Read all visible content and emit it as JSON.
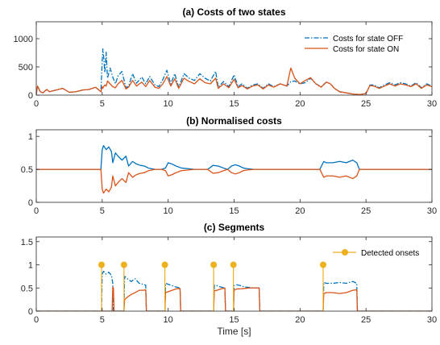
{
  "chart_data": [
    {
      "type": "line",
      "title": "(a) Costs of two states",
      "xlabel": "",
      "ylabel": "",
      "xlim": [
        0,
        30
      ],
      "ylim": [
        0,
        1300
      ],
      "xticks": [
        0,
        5,
        10,
        15,
        20,
        25,
        30
      ],
      "yticks": [
        0,
        500,
        1000
      ],
      "grid": false,
      "legend_position": "top-right",
      "series": [
        {
          "name": "Costs for state OFF",
          "color": "#0072BD",
          "style": "dash-dot",
          "x": [
            0,
            0.1,
            0.3,
            0.5,
            0.8,
            1.0,
            1.5,
            2.0,
            2.5,
            3.0,
            3.5,
            4.0,
            4.5,
            4.9,
            5.0,
            5.05,
            5.1,
            5.2,
            5.3,
            5.4,
            5.6,
            5.8,
            6.0,
            6.2,
            6.5,
            6.8,
            7.0,
            7.3,
            7.6,
            8.0,
            8.3,
            8.6,
            9.0,
            9.3,
            9.6,
            9.9,
            10.2,
            10.5,
            10.8,
            11.2,
            11.6,
            12.0,
            12.4,
            12.8,
            13.2,
            13.6,
            13.8,
            14.2,
            14.6,
            15.0,
            15.3,
            15.6,
            16.0,
            16.4,
            16.8,
            17.2,
            17.6,
            18.0,
            18.5,
            19.0,
            19.3,
            19.6,
            20.0,
            20.4,
            20.8,
            21.2,
            21.6,
            22.0,
            22.3,
            22.6,
            23.0,
            23.5,
            24.0,
            24.5,
            24.8,
            25.0,
            25.3,
            25.6,
            26.0,
            26.4,
            26.8,
            27.2,
            27.6,
            28.0,
            28.4,
            28.8,
            29.2,
            29.6,
            30.0
          ],
          "values": [
            20,
            160,
            60,
            40,
            100,
            60,
            90,
            120,
            50,
            60,
            90,
            100,
            140,
            60,
            600,
            820,
            700,
            400,
            760,
            300,
            480,
            320,
            200,
            340,
            420,
            130,
            160,
            380,
            210,
            320,
            200,
            330,
            180,
            150,
            280,
            440,
            200,
            380,
            140,
            380,
            300,
            260,
            380,
            300,
            250,
            420,
            140,
            240,
            150,
            360,
            150,
            200,
            120,
            180,
            200,
            120,
            200,
            150,
            200,
            160,
            240,
            250,
            200,
            220,
            300,
            200,
            150,
            230,
            200,
            120,
            60,
            40,
            20,
            10,
            20,
            30,
            180,
            180,
            130,
            180,
            220,
            180,
            220,
            200,
            160,
            220,
            130,
            200,
            160
          ]
        },
        {
          "name": "Costs for state ON",
          "color": "#D95319",
          "style": "solid",
          "x": [
            0,
            0.1,
            0.3,
            0.5,
            0.8,
            1.0,
            1.5,
            2.0,
            2.5,
            3.0,
            3.5,
            4.0,
            4.5,
            4.9,
            5.0,
            5.05,
            5.1,
            5.2,
            5.3,
            5.4,
            5.6,
            5.8,
            6.0,
            6.2,
            6.5,
            6.8,
            7.0,
            7.3,
            7.6,
            8.0,
            8.3,
            8.6,
            9.0,
            9.3,
            9.6,
            9.9,
            10.2,
            10.5,
            10.8,
            11.2,
            11.6,
            12.0,
            12.4,
            12.8,
            13.2,
            13.6,
            13.8,
            14.2,
            14.6,
            15.0,
            15.3,
            15.6,
            16.0,
            16.4,
            16.8,
            17.2,
            17.6,
            18.0,
            18.5,
            19.0,
            19.3,
            19.6,
            20.0,
            20.4,
            20.8,
            21.2,
            21.6,
            22.0,
            22.3,
            22.6,
            23.0,
            23.5,
            24.0,
            24.5,
            24.8,
            25.0,
            25.3,
            25.6,
            26.0,
            26.4,
            26.8,
            27.2,
            27.6,
            28.0,
            28.4,
            28.8,
            29.2,
            29.6,
            30.0
          ],
          "values": [
            20,
            160,
            60,
            40,
            100,
            60,
            90,
            120,
            50,
            60,
            90,
            100,
            140,
            60,
            150,
            120,
            150,
            180,
            160,
            250,
            200,
            150,
            130,
            200,
            260,
            110,
            140,
            260,
            160,
            230,
            150,
            260,
            140,
            120,
            200,
            330,
            160,
            290,
            120,
            300,
            240,
            200,
            290,
            220,
            200,
            300,
            120,
            200,
            130,
            280,
            130,
            170,
            110,
            160,
            180,
            110,
            180,
            140,
            200,
            160,
            480,
            300,
            200,
            260,
            310,
            200,
            140,
            230,
            200,
            120,
            60,
            40,
            20,
            10,
            20,
            30,
            170,
            160,
            120,
            160,
            200,
            160,
            200,
            180,
            150,
            200,
            120,
            180,
            150
          ]
        }
      ]
    },
    {
      "type": "line",
      "title": "(b) Normalised costs",
      "xlabel": "",
      "ylabel": "",
      "xlim": [
        0,
        30
      ],
      "ylim": [
        0,
        1.1
      ],
      "xticks": [
        0,
        5,
        10,
        15,
        20,
        25,
        30
      ],
      "yticks": [
        0,
        0.5,
        1
      ],
      "grid": false,
      "series": [
        {
          "color": "#0072BD",
          "style": "solid",
          "x": [
            0,
            4.9,
            5.0,
            5.1,
            5.3,
            5.5,
            5.7,
            5.8,
            6.0,
            6.2,
            6.5,
            6.8,
            7.0,
            7.3,
            7.6,
            7.9,
            8.2,
            8.5,
            9.0,
            9.5,
            9.8,
            10.0,
            10.3,
            10.6,
            11.0,
            11.5,
            12.0,
            12.5,
            13.0,
            13.4,
            13.8,
            14.2,
            14.5,
            14.8,
            15.1,
            15.4,
            15.7,
            16.0,
            16.5,
            17.0,
            21.5,
            21.8,
            22.0,
            22.5,
            23.0,
            23.5,
            24.0,
            24.3,
            24.5,
            30.0
          ],
          "values": [
            0.5,
            0.5,
            0.8,
            0.86,
            0.8,
            0.84,
            0.77,
            0.6,
            0.75,
            0.7,
            0.64,
            0.7,
            0.55,
            0.62,
            0.58,
            0.56,
            0.55,
            0.52,
            0.5,
            0.5,
            0.52,
            0.6,
            0.58,
            0.55,
            0.52,
            0.51,
            0.5,
            0.5,
            0.5,
            0.56,
            0.55,
            0.52,
            0.5,
            0.55,
            0.57,
            0.55,
            0.52,
            0.51,
            0.5,
            0.5,
            0.5,
            0.62,
            0.6,
            0.6,
            0.62,
            0.6,
            0.64,
            0.6,
            0.5,
            0.5
          ]
        },
        {
          "color": "#D95319",
          "style": "solid",
          "x": [
            0,
            4.9,
            5.0,
            5.1,
            5.3,
            5.5,
            5.7,
            5.8,
            6.0,
            6.2,
            6.5,
            6.8,
            7.0,
            7.3,
            7.6,
            7.9,
            8.2,
            8.5,
            9.0,
            9.5,
            9.8,
            10.0,
            10.3,
            10.6,
            11.0,
            11.5,
            12.0,
            12.5,
            13.0,
            13.4,
            13.8,
            14.2,
            14.5,
            14.8,
            15.1,
            15.4,
            15.7,
            16.0,
            16.5,
            17.0,
            21.5,
            21.8,
            22.0,
            22.5,
            23.0,
            23.5,
            24.0,
            24.3,
            24.5,
            30.0
          ],
          "values": [
            0.5,
            0.5,
            0.2,
            0.14,
            0.2,
            0.16,
            0.23,
            0.4,
            0.25,
            0.3,
            0.36,
            0.3,
            0.45,
            0.38,
            0.42,
            0.44,
            0.45,
            0.48,
            0.5,
            0.5,
            0.48,
            0.4,
            0.42,
            0.45,
            0.48,
            0.49,
            0.5,
            0.5,
            0.5,
            0.44,
            0.45,
            0.48,
            0.5,
            0.45,
            0.43,
            0.45,
            0.48,
            0.49,
            0.5,
            0.5,
            0.5,
            0.38,
            0.4,
            0.4,
            0.38,
            0.4,
            0.36,
            0.4,
            0.5,
            0.5
          ]
        }
      ]
    },
    {
      "type": "line",
      "title": "(c) Segments",
      "xlabel": "Time [s]",
      "ylabel": "",
      "xlim": [
        0,
        30
      ],
      "ylim": [
        0,
        1.6
      ],
      "xticks": [
        0,
        5,
        10,
        15,
        20,
        25,
        30
      ],
      "yticks": [
        0,
        0.5,
        1,
        1.5
      ],
      "grid": false,
      "legend_position": "top-right",
      "series": [
        {
          "color": "#0072BD",
          "style": "dash-dot",
          "x": [
            0,
            4.95,
            5.0,
            5.1,
            5.3,
            5.5,
            5.7,
            5.8,
            5.85,
            6.65,
            6.7,
            6.9,
            7.2,
            7.5,
            7.8,
            8.1,
            8.3,
            8.35,
            9.75,
            9.8,
            10.0,
            10.3,
            10.6,
            10.9,
            10.95,
            13.45,
            13.5,
            13.7,
            14.0,
            14.3,
            14.35,
            14.95,
            15.0,
            15.2,
            15.5,
            15.8,
            16.2,
            16.6,
            16.9,
            16.95,
            21.75,
            21.8,
            22.0,
            22.5,
            23.0,
            23.5,
            24.0,
            24.3,
            24.35,
            30.0
          ],
          "values": [
            0,
            0,
            0.8,
            0.86,
            0.8,
            0.84,
            0.77,
            0.6,
            0,
            0,
            0.75,
            0.7,
            0.64,
            0.7,
            0.6,
            0.58,
            0.56,
            0,
            0,
            0.6,
            0.58,
            0.55,
            0.52,
            0.5,
            0,
            0,
            0.56,
            0.55,
            0.52,
            0.5,
            0,
            0,
            0.55,
            0.57,
            0.55,
            0.52,
            0.51,
            0.5,
            0.5,
            0,
            0,
            0.62,
            0.6,
            0.6,
            0.62,
            0.6,
            0.64,
            0.6,
            0,
            0
          ]
        },
        {
          "color": "#D95319",
          "style": "solid",
          "x": [
            0,
            5.75,
            5.8,
            5.85,
            5.9,
            6.65,
            6.7,
            6.9,
            7.2,
            7.5,
            7.8,
            8.1,
            8.3,
            8.35,
            9.75,
            9.8,
            10.0,
            10.3,
            10.6,
            10.9,
            10.95,
            13.45,
            13.5,
            13.7,
            14.0,
            14.3,
            14.35,
            14.95,
            15.0,
            15.2,
            15.5,
            15.8,
            16.2,
            16.6,
            16.9,
            16.95,
            21.75,
            21.8,
            22.0,
            22.5,
            23.0,
            23.5,
            24.0,
            24.3,
            24.35,
            30.0
          ],
          "values": [
            0,
            0,
            0.52,
            0.5,
            0,
            0,
            0.25,
            0.3,
            0.36,
            0.4,
            0.45,
            0.45,
            0.46,
            0,
            0,
            0.4,
            0.42,
            0.45,
            0.48,
            0.49,
            0,
            0,
            0.44,
            0.45,
            0.48,
            0.5,
            0,
            0,
            0.45,
            0.48,
            0.48,
            0.49,
            0.5,
            0.5,
            0.5,
            0,
            0,
            0.38,
            0.4,
            0.4,
            0.38,
            0.4,
            0.45,
            0.46,
            0,
            0
          ]
        },
        {
          "name": "Detected onsets",
          "type": "stem",
          "color": "#EDB120",
          "x": [
            4.95,
            6.65,
            9.75,
            13.45,
            14.95,
            21.75
          ],
          "values": [
            1,
            1,
            1,
            1,
            1,
            1
          ]
        }
      ]
    }
  ]
}
